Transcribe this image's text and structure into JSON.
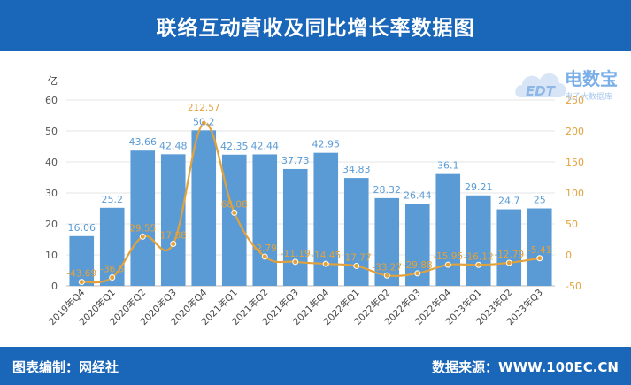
{
  "header": {
    "title": "联络互动营收及同比增长率数据图"
  },
  "footer": {
    "left": "图表编制：网经社",
    "right": "数据来源：WWW.100EC.CN"
  },
  "logo": {
    "brand": "电数宝",
    "sub": "电子大数据库",
    "mark": "EDT"
  },
  "colors": {
    "bar": "#5b9bd5",
    "line": "#e2a23b",
    "bar_label": "#5b9bd5",
    "line_label": "#e2a23b",
    "header": "#1a66b8"
  },
  "chart_data": {
    "type": "bar+line",
    "categories": [
      "2019年Q4",
      "2020年Q1",
      "2020年Q2",
      "2020年Q3",
      "2020年Q4",
      "2021年Q1",
      "2021年Q2",
      "2021年Q3",
      "2021年Q4",
      "2022年Q1",
      "2022年Q2",
      "2022年Q3",
      "2022年Q4",
      "2023年Q1",
      "2023年Q2",
      "2023年Q3"
    ],
    "series": [
      {
        "type": "bar",
        "axis": "left",
        "values": [
          16.06,
          25.2,
          43.66,
          42.48,
          50.2,
          42.35,
          42.44,
          37.73,
          42.95,
          34.83,
          28.32,
          26.44,
          36.1,
          29.21,
          24.7,
          25
        ]
      },
      {
        "type": "line",
        "axis": "right",
        "values": [
          -43.69,
          -36.5,
          29.55,
          17.88,
          212.57,
          68.08,
          -2.79,
          -11.19,
          -14.45,
          -17.77,
          -33.27,
          -29.88,
          -15.95,
          -16.12,
          -12.79,
          -5.41
        ]
      }
    ],
    "ylabel": "亿",
    "ylim": [
      0,
      60
    ],
    "yticks": [
      0,
      10,
      20,
      30,
      40,
      50,
      60
    ],
    "y2lim": [
      -50,
      250
    ],
    "y2ticks": [
      -50,
      0,
      50,
      100,
      150,
      200,
      250
    ],
    "grid": true
  }
}
